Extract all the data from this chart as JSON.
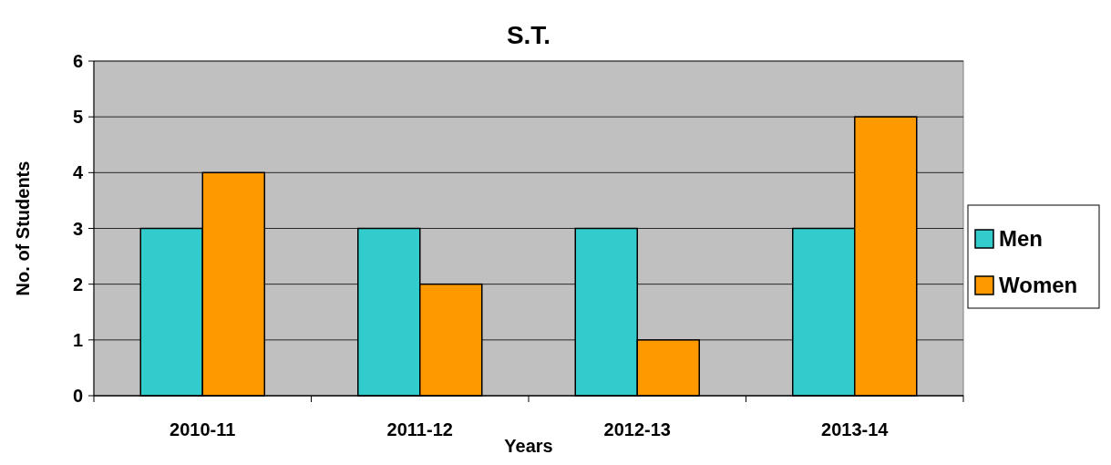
{
  "chart_data": {
    "type": "bar",
    "title": "S.T.",
    "xlabel": "Years",
    "ylabel": "No. of Students",
    "categories": [
      "2010-11",
      "2011-12",
      "2012-13",
      "2013-14"
    ],
    "series": [
      {
        "name": "Men",
        "color": "#33cccc",
        "values": [
          3,
          3,
          3,
          3
        ]
      },
      {
        "name": "Women",
        "color": "#ff9900",
        "values": [
          4,
          2,
          1,
          5
        ]
      }
    ],
    "ylim": [
      0,
      6
    ],
    "yticks": [
      0,
      1,
      2,
      3,
      4,
      5,
      6
    ],
    "grid": "y",
    "legend": "right"
  }
}
